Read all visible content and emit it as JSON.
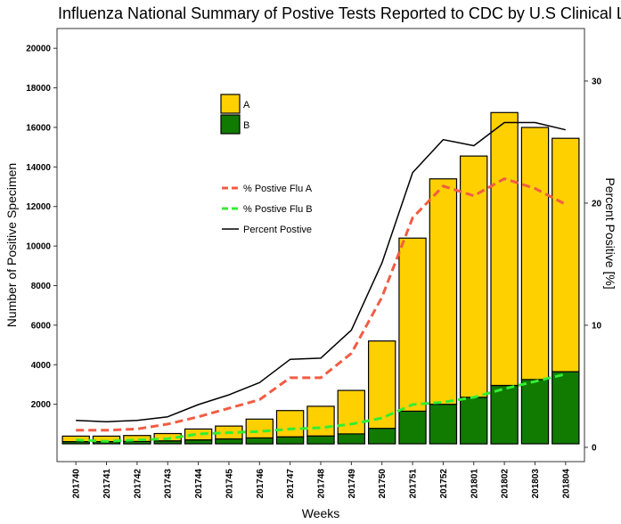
{
  "chart_data": {
    "type": "bar",
    "title": "Influenza National Summary of Postive Tests Reported to CDC by U.S Clinical Lab",
    "xlabel": "Weeks",
    "ylabel": "Number of Positive Specimen",
    "y2label": "Percent Positive [%]",
    "ylim": [
      -900,
      21000
    ],
    "y2lim": [
      -1.17,
      34.3
    ],
    "yticks": [
      "2000",
      "4000",
      "6000",
      "8000",
      "10000",
      "12000",
      "14000",
      "16000",
      "18000",
      "20000"
    ],
    "y2ticks": [
      "0",
      "10",
      "20",
      "30"
    ],
    "categories": [
      "201740",
      "201741",
      "201742",
      "201743",
      "201744",
      "201745",
      "201746",
      "201747",
      "201748",
      "201749",
      "201750",
      "201751",
      "201752",
      "201801",
      "201802",
      "201803",
      "201804"
    ],
    "stacked": true,
    "series": [
      {
        "name": "B",
        "color": "#117A00",
        "values": [
          110,
          110,
          120,
          150,
          200,
          250,
          300,
          350,
          400,
          500,
          780,
          1650,
          2000,
          2350,
          2950,
          3250,
          3650
        ]
      },
      {
        "name": "A",
        "color": "#FFD000",
        "values": [
          280,
          280,
          300,
          370,
          550,
          650,
          950,
          1330,
          1500,
          2200,
          4420,
          8750,
          11400,
          12200,
          13800,
          12750,
          11800
        ]
      }
    ],
    "line_series": [
      {
        "name": "% Postive Flu A",
        "color": "#F25C44",
        "dashed": true,
        "axis": "right",
        "values": [
          1.4,
          1.4,
          1.5,
          1.9,
          2.5,
          3.2,
          3.9,
          5.7,
          5.7,
          7.7,
          12.3,
          18.8,
          21.4,
          20.6,
          22.0,
          21.2,
          19.9
        ]
      },
      {
        "name": "% Postive Flu B",
        "color": "#33EE33",
        "dashed": true,
        "axis": "right",
        "values": [
          0.6,
          0.5,
          0.6,
          0.7,
          1.1,
          1.2,
          1.3,
          1.5,
          1.6,
          1.9,
          2.4,
          3.5,
          3.7,
          4.1,
          4.8,
          5.4,
          6.0
        ]
      },
      {
        "name": "Percent Postive",
        "color": "#000000",
        "dashed": false,
        "axis": "right",
        "values": [
          2.2,
          2.1,
          2.2,
          2.5,
          3.5,
          4.3,
          5.3,
          7.2,
          7.3,
          9.6,
          15.1,
          22.5,
          25.2,
          24.7,
          26.6,
          26.6,
          26.0
        ]
      }
    ],
    "legend_bars": [
      {
        "label": "A",
        "color": "#FFD000"
      },
      {
        "label": "B",
        "color": "#117A00"
      }
    ],
    "legend_lines": [
      {
        "label": "% Postive Flu A",
        "color": "#F25C44",
        "dashed": true
      },
      {
        "label": "% Postive Flu B",
        "color": "#33EE33",
        "dashed": true
      },
      {
        "label": "Percent Postive",
        "color": "#000000",
        "dashed": false
      }
    ],
    "grid": false,
    "legend_placement": "inside top-left"
  }
}
